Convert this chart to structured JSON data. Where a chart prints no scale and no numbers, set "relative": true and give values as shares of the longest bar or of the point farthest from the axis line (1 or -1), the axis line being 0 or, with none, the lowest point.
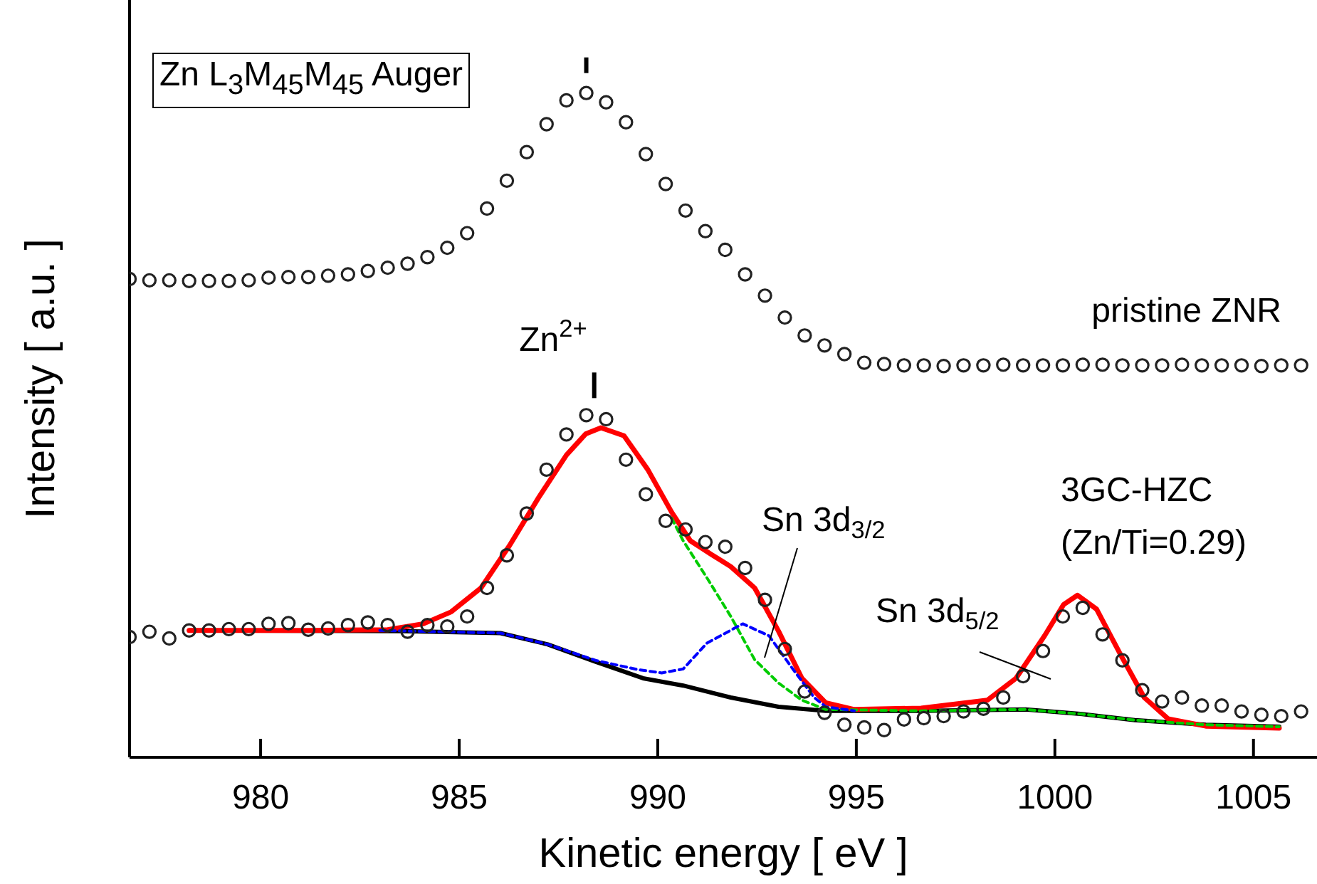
{
  "chart_data": {
    "type": "scatter",
    "relative": true,
    "xlabel": "Kinetic energy [ eV ]",
    "ylabel": "Intensity [ a.u. ]",
    "xlim": [
      976.7,
      1006.6
    ],
    "xticks": [
      980,
      985,
      990,
      995,
      1000,
      1005
    ],
    "annotations": [
      "Zn L$_{3}$M$_{45}$M$_{45}$ Auger",
      {
        "text": "Zn$^{2+}$",
        "x": 988.4,
        "y": 0.5
      },
      "Sn 3d$_{3/2}$",
      "Sn 3d$_{5/2}$",
      "(Zn/Ti=0.29)"
    ],
    "series": [
      {
        "name": "pristine ZNR",
        "color": "#222222",
        "marker": "circle",
        "x": [
          976.7,
          977.2,
          977.7,
          978.2,
          978.7,
          979.2,
          979.7,
          980.2,
          980.7,
          981.2,
          981.7,
          982.2,
          982.7,
          983.2,
          983.7,
          984.2,
          984.7,
          985.2,
          985.7,
          986.2,
          986.7,
          987.2,
          987.7,
          988.2,
          988.7,
          989.2,
          989.7,
          990.2,
          990.7,
          991.2,
          991.7,
          992.2,
          992.7,
          993.2,
          993.7,
          994.2,
          994.7,
          995.2,
          995.7,
          996.2,
          996.7,
          997.2,
          997.7,
          998.2,
          998.7,
          999.2,
          999.7,
          1000.2,
          1000.7,
          1001.2,
          1001.7,
          1002.2,
          1002.7,
          1003.2,
          1003.7,
          1004.2,
          1004.7,
          1005.2,
          1005.7,
          1006.2
        ],
        "values": [
          0.72,
          0.718,
          0.718,
          0.717,
          0.717,
          0.717,
          0.718,
          0.722,
          0.723,
          0.723,
          0.725,
          0.727,
          0.732,
          0.737,
          0.743,
          0.753,
          0.767,
          0.789,
          0.826,
          0.868,
          0.911,
          0.953,
          0.989,
          1.0,
          0.986,
          0.956,
          0.908,
          0.863,
          0.823,
          0.792,
          0.764,
          0.727,
          0.695,
          0.662,
          0.635,
          0.62,
          0.607,
          0.594,
          0.592,
          0.59,
          0.59,
          0.589,
          0.59,
          0.59,
          0.591,
          0.59,
          0.59,
          0.59,
          0.591,
          0.591,
          0.59,
          0.59,
          0.59,
          0.591,
          0.59,
          0.59,
          0.59,
          0.589,
          0.59,
          0.59
        ]
      },
      {
        "name": "3GC-HZC",
        "color": "#222222",
        "marker": "circle",
        "x": [
          976.7,
          977.2,
          977.7,
          978.2,
          978.7,
          979.2,
          979.7,
          980.2,
          980.7,
          981.2,
          981.7,
          982.2,
          982.7,
          983.2,
          983.7,
          984.2,
          984.7,
          985.2,
          985.7,
          986.2,
          986.7,
          987.2,
          987.7,
          988.2,
          988.7,
          989.2,
          989.7,
          990.2,
          990.7,
          991.2,
          991.7,
          992.2,
          992.7,
          993.2,
          993.7,
          994.2,
          994.7,
          995.2,
          995.7,
          996.2,
          996.7,
          997.2,
          997.7,
          998.2,
          998.7,
          999.2,
          999.7,
          1000.2,
          1000.7,
          1001.2,
          1001.7,
          1002.2,
          1002.7,
          1003.2,
          1003.7,
          1004.2,
          1004.7,
          1005.2,
          1005.7,
          1006.2
        ],
        "values": [
          0.181,
          0.189,
          0.179,
          0.191,
          0.191,
          0.193,
          0.193,
          0.201,
          0.202,
          0.192,
          0.194,
          0.199,
          0.203,
          0.199,
          0.189,
          0.199,
          0.197,
          0.212,
          0.255,
          0.304,
          0.367,
          0.433,
          0.486,
          0.515,
          0.509,
          0.448,
          0.396,
          0.356,
          0.343,
          0.324,
          0.317,
          0.285,
          0.237,
          0.163,
          0.099,
          0.067,
          0.049,
          0.045,
          0.041,
          0.057,
          0.059,
          0.062,
          0.069,
          0.073,
          0.09,
          0.122,
          0.16,
          0.212,
          0.225,
          0.185,
          0.146,
          0.101,
          0.084,
          0.09,
          0.078,
          0.078,
          0.069,
          0.064,
          0.062,
          0.069
        ]
      },
      {
        "type": "line",
        "color": "#000000",
        "line_style": "solid",
        "marker": "none",
        "x": [
          978.2,
          983.6,
          986.04,
          987.23,
          988.43,
          989.63,
          990.64,
          991.84,
          993.04,
          994.23,
          996.63,
          999.26,
          1000.69,
          1002.01,
          1003.8,
          1005.65
        ],
        "values": [
          0.191,
          0.19,
          0.187,
          0.17,
          0.144,
          0.119,
          0.108,
          0.09,
          0.076,
          0.07,
          0.07,
          0.072,
          0.065,
          0.056,
          0.049,
          0.046
        ]
      },
      {
        "type": "line",
        "color": "#00cc00",
        "line_style": "dashed",
        "marker": "none",
        "x": [
          990.35,
          990.64,
          991.24,
          991.84,
          992.44,
          993.04,
          993.63,
          994.23,
          996.63,
          999.26,
          1000.69,
          1002.01,
          1003.8,
          1005.65
        ],
        "values": [
          0.36,
          0.326,
          0.27,
          0.212,
          0.147,
          0.112,
          0.086,
          0.072,
          0.07,
          0.072,
          0.065,
          0.056,
          0.049,
          0.046
        ]
      },
      {
        "type": "line",
        "color": "#0000ff",
        "line_style": "dashed",
        "marker": "none",
        "x": [
          983.0,
          986.04,
          987.23,
          988.43,
          989.5,
          990.1,
          990.64,
          991.24,
          992.14,
          992.8,
          993.4,
          993.94,
          994.23,
          994.95
        ],
        "values": [
          0.191,
          0.187,
          0.17,
          0.146,
          0.132,
          0.127,
          0.133,
          0.172,
          0.201,
          0.183,
          0.133,
          0.09,
          0.076,
          0.07
        ]
      },
      {
        "type": "line",
        "color": "#ff0000",
        "line_style": "solid",
        "marker": "none",
        "x": [
          978.2,
          981.25,
          983.2,
          984.1,
          984.8,
          985.55,
          986.27,
          987.0,
          987.7,
          988.19,
          988.57,
          989.15,
          989.75,
          990.35,
          990.82,
          991.36,
          991.84,
          992.44,
          993.04,
          993.63,
          994.23,
          994.95,
          996.63,
          998.3,
          999.02,
          999.74,
          1000.22,
          1000.57,
          1001.05,
          1001.65,
          1002.25,
          1002.85,
          1003.8,
          1005.65
        ],
        "values": [
          0.191,
          0.191,
          0.192,
          0.201,
          0.219,
          0.255,
          0.319,
          0.391,
          0.455,
          0.487,
          0.496,
          0.484,
          0.433,
          0.369,
          0.326,
          0.305,
          0.287,
          0.255,
          0.19,
          0.119,
          0.082,
          0.072,
          0.074,
          0.086,
          0.119,
          0.183,
          0.23,
          0.244,
          0.223,
          0.155,
          0.09,
          0.058,
          0.047,
          0.044
        ]
      }
    ]
  }
}
